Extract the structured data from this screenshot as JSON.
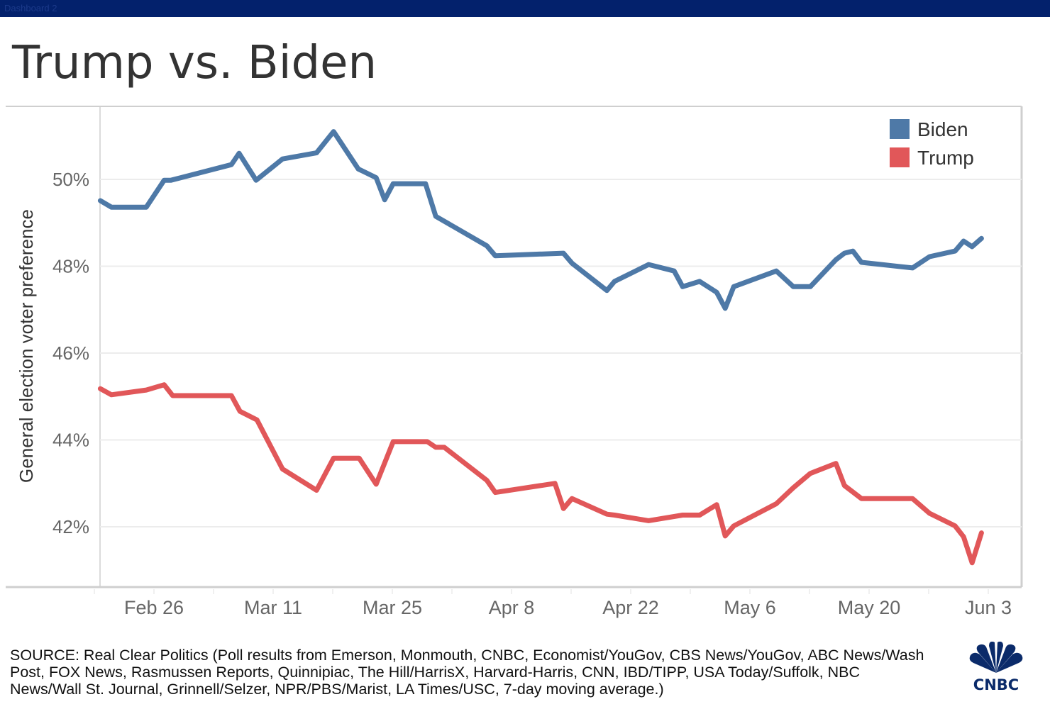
{
  "window": {
    "title": "Dashboard 2"
  },
  "header": {
    "title": "Trump vs. Biden"
  },
  "footer": {
    "source": "SOURCE: Real Clear Politics (Poll results from Emerson, Monmouth, CNBC, Economist/YouGov, CBS News/YouGov, ABC News/Wash Post, FOX News, Rasmussen Reports, Quinnipiac, The Hill/HarrisX, Harvard-Harris, CNN, IBD/TIPP, USA Today/Suffolk, NBC News/Wall St. Journal, Grinnell/Selzer, NPR/PBS/Marist, LA Times/USC, 7-day moving average.)",
    "logo": "CNBC"
  },
  "chart_data": {
    "type": "line",
    "title": "Trump vs. Biden",
    "xlabel": "",
    "ylabel": "General election voter preference",
    "x_unit": "days relative to Feb 26",
    "xlim": [
      -6.3,
      101
    ],
    "ylim": [
      40.6,
      51.7
    ],
    "yticks": [
      42,
      44,
      46,
      48,
      50
    ],
    "ytick_labels": [
      "42%",
      "44%",
      "46%",
      "48%",
      "50%"
    ],
    "xticks": [
      0,
      14,
      28,
      42,
      56,
      70,
      84,
      98
    ],
    "xtick_labels": [
      "Feb 26",
      "Mar 11",
      "Mar 25",
      "Apr 8",
      "Apr 22",
      "May 6",
      "May 20",
      "Jun 3"
    ],
    "grid": true,
    "legend": "top-right",
    "series": [
      {
        "name": "Biden",
        "color": "#4e79a7",
        "x": [
          -6.3,
          -5,
          -0.9,
          1.2,
          2,
          9.1,
          10,
          12,
          15.1,
          19.1,
          21.1,
          24,
          26.1,
          27.1,
          28.1,
          31.9,
          33.1,
          39.1,
          40.1,
          48.1,
          49.1,
          53.2,
          54.1,
          58.1,
          61.1,
          62.1,
          64.1,
          66.1,
          67.1,
          68.1,
          73.1,
          75.1,
          77.1,
          80.1,
          81.1,
          82.1,
          83.1,
          89.1,
          91.1,
          94.1,
          95.1,
          96.1,
          97.2
        ],
        "y": [
          49.51,
          49.36,
          49.36,
          49.98,
          49.98,
          50.34,
          50.6,
          49.98,
          50.47,
          50.61,
          51.1,
          50.24,
          50.04,
          49.53,
          49.9,
          49.9,
          49.15,
          48.47,
          48.24,
          48.3,
          48.07,
          47.44,
          47.65,
          48.04,
          47.89,
          47.53,
          47.65,
          47.4,
          47.03,
          47.53,
          47.89,
          47.53,
          47.53,
          48.15,
          48.3,
          48.35,
          48.09,
          47.96,
          48.22,
          48.35,
          48.58,
          48.45,
          48.64
        ]
      },
      {
        "name": "Trump",
        "color": "#e15759",
        "x": [
          -6.3,
          -5,
          -0.9,
          1.2,
          2.2,
          9.1,
          10.1,
          12.1,
          15.1,
          19.1,
          21.1,
          24.1,
          26.1,
          28.1,
          32.1,
          33.1,
          34.1,
          39.1,
          40.1,
          47.1,
          48.1,
          49.1,
          53.2,
          54.1,
          58.1,
          62.1,
          64.1,
          66.1,
          67.1,
          68.1,
          73.1,
          75.1,
          77.1,
          80.1,
          81.1,
          83.1,
          89.1,
          91.1,
          94.1,
          95.1,
          96.1,
          97.2
        ],
        "y": [
          45.18,
          45.04,
          45.15,
          45.27,
          45.02,
          45.02,
          44.66,
          44.46,
          43.33,
          42.84,
          43.58,
          43.58,
          42.98,
          43.96,
          43.96,
          43.83,
          43.83,
          43.07,
          42.79,
          43.0,
          42.42,
          42.65,
          42.29,
          42.27,
          42.14,
          42.27,
          42.27,
          42.51,
          41.79,
          42.02,
          42.53,
          42.9,
          43.23,
          43.46,
          42.95,
          42.65,
          42.65,
          42.31,
          42.02,
          41.77,
          41.17,
          41.86
        ]
      }
    ]
  }
}
